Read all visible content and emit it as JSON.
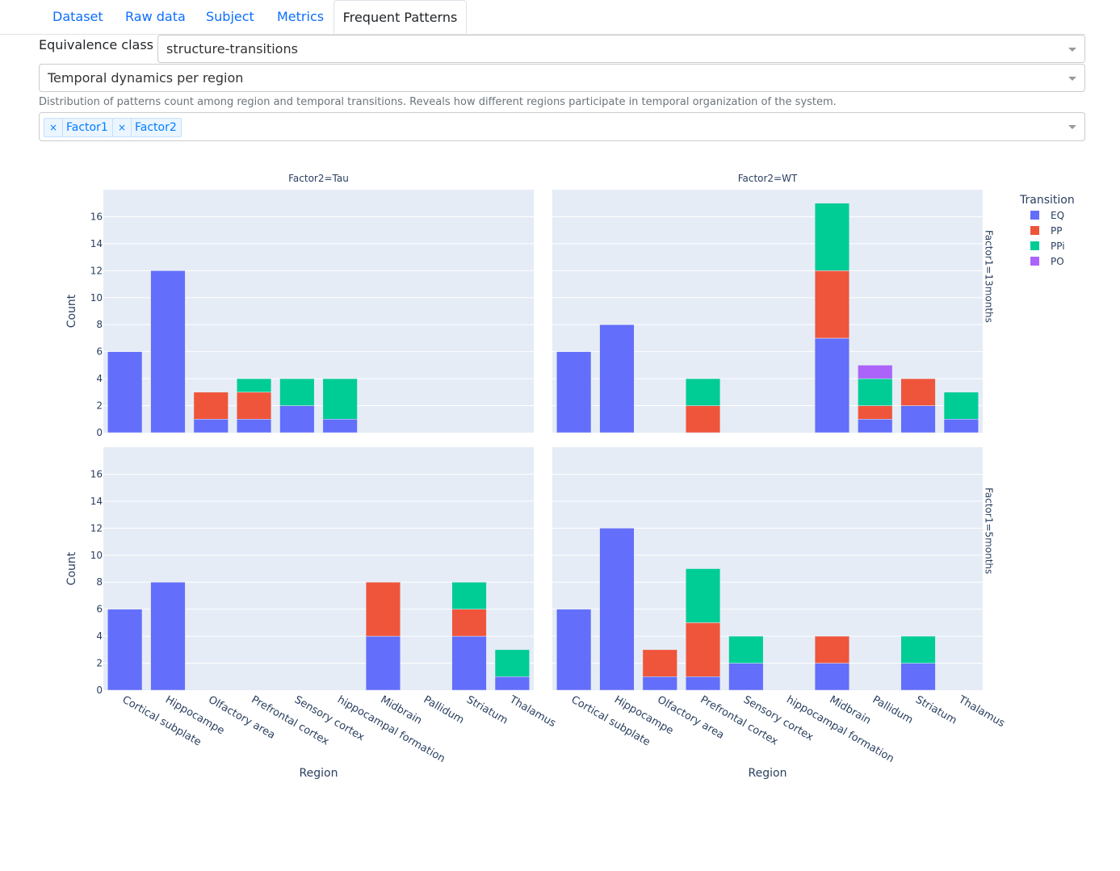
{
  "tabs": [
    "Dataset",
    "Raw data",
    "Subject",
    "Metrics",
    "Frequent Patterns"
  ],
  "active_tab": "Frequent Patterns",
  "equivalence": {
    "label": "Equivalence class",
    "value": "structure-transitions"
  },
  "view": {
    "value": "Temporal dynamics per region"
  },
  "description": "Distribution of patterns count among region and temporal transitions. Reveals how different regions participate in temporal organization of the system.",
  "factors": {
    "chips": [
      "Factor1",
      "Factor2"
    ],
    "remove_symbol": "×"
  },
  "colors": {
    "EQ": "#636efa",
    "PP": "#ef553b",
    "PPi": "#00cc96",
    "PO": "#ab63fa"
  },
  "chart_data": {
    "type": "bar",
    "barmode": "stack",
    "ylabel": "Count",
    "xlabel": "Region",
    "ylim": [
      0,
      18
    ],
    "yticks": [
      0,
      2,
      4,
      6,
      8,
      10,
      12,
      14,
      16
    ],
    "grid": true,
    "legend": {
      "title": "Transition",
      "placement": "top-right",
      "items": [
        "EQ",
        "PP",
        "PPi",
        "PO"
      ]
    },
    "categories": [
      "Cortical subplate",
      "Hippocampe",
      "Olfactory area",
      "Prefrontal cortex",
      "Sensory cortex",
      "hippocampal formation",
      "Midbrain",
      "Pallidum",
      "Striatum",
      "Thalamus"
    ],
    "col_titles": [
      "Factor2=Tau",
      "Factor2=WT"
    ],
    "row_titles": [
      "Factor1=13months",
      "Factor1=5months"
    ],
    "panels": [
      {
        "row": 0,
        "col": 0,
        "series": [
          {
            "name": "EQ",
            "values": [
              6,
              12,
              1,
              1,
              2,
              1,
              0,
              0,
              0,
              0
            ]
          },
          {
            "name": "PP",
            "values": [
              0,
              0,
              2,
              2,
              0,
              0,
              0,
              0,
              0,
              0
            ]
          },
          {
            "name": "PPi",
            "values": [
              0,
              0,
              0,
              1,
              2,
              3,
              0,
              0,
              0,
              0
            ]
          },
          {
            "name": "PO",
            "values": [
              0,
              0,
              0,
              0,
              0,
              0,
              0,
              0,
              0,
              0
            ]
          }
        ]
      },
      {
        "row": 0,
        "col": 1,
        "series": [
          {
            "name": "EQ",
            "values": [
              6,
              8,
              0,
              0,
              0,
              0,
              7,
              1,
              2,
              1
            ]
          },
          {
            "name": "PP",
            "values": [
              0,
              0,
              0,
              2,
              0,
              0,
              5,
              1,
              2,
              0
            ]
          },
          {
            "name": "PPi",
            "values": [
              0,
              0,
              0,
              2,
              0,
              0,
              5,
              2,
              0,
              2
            ]
          },
          {
            "name": "PO",
            "values": [
              0,
              0,
              0,
              0,
              0,
              0,
              0,
              1,
              0,
              0
            ]
          }
        ]
      },
      {
        "row": 1,
        "col": 0,
        "series": [
          {
            "name": "EQ",
            "values": [
              6,
              8,
              0,
              0,
              0,
              0,
              4,
              0,
              4,
              1
            ]
          },
          {
            "name": "PP",
            "values": [
              0,
              0,
              0,
              0,
              0,
              0,
              4,
              0,
              2,
              0
            ]
          },
          {
            "name": "PPi",
            "values": [
              0,
              0,
              0,
              0,
              0,
              0,
              0,
              0,
              2,
              2
            ]
          },
          {
            "name": "PO",
            "values": [
              0,
              0,
              0,
              0,
              0,
              0,
              0,
              0,
              0,
              0
            ]
          }
        ]
      },
      {
        "row": 1,
        "col": 1,
        "series": [
          {
            "name": "EQ",
            "values": [
              6,
              12,
              1,
              1,
              2,
              0,
              2,
              0,
              2,
              0
            ]
          },
          {
            "name": "PP",
            "values": [
              0,
              0,
              2,
              4,
              0,
              0,
              2,
              0,
              0,
              0
            ]
          },
          {
            "name": "PPi",
            "values": [
              0,
              0,
              0,
              4,
              2,
              0,
              0,
              0,
              2,
              0
            ]
          },
          {
            "name": "PO",
            "values": [
              0,
              0,
              0,
              0,
              0,
              0,
              0,
              0,
              0,
              0
            ]
          }
        ]
      }
    ]
  }
}
